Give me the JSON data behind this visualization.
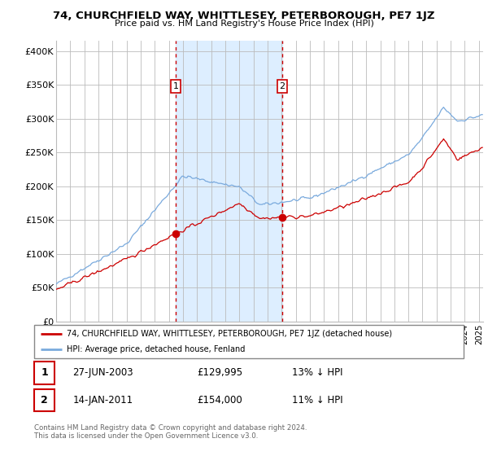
{
  "title": "74, CHURCHFIELD WAY, WHITTLESEY, PETERBOROUGH, PE7 1JZ",
  "subtitle": "Price paid vs. HM Land Registry's House Price Index (HPI)",
  "ylabel_ticks": [
    "£0",
    "£50K",
    "£100K",
    "£150K",
    "£200K",
    "£250K",
    "£300K",
    "£350K",
    "£400K"
  ],
  "ytick_values": [
    0,
    50000,
    100000,
    150000,
    200000,
    250000,
    300000,
    350000,
    400000
  ],
  "ylim": [
    0,
    415000
  ],
  "xlim_start": 1995.0,
  "xlim_end": 2025.3,
  "sale1_date": 2003.486,
  "sale1_price": 129995,
  "sale1_label": "1",
  "sale2_date": 2011.04,
  "sale2_price": 154000,
  "sale2_label": "2",
  "legend_line1": "74, CHURCHFIELD WAY, WHITTLESEY, PETERBOROUGH, PE7 1JZ (detached house)",
  "legend_line2": "HPI: Average price, detached house, Fenland",
  "table_row1": [
    "1",
    "27-JUN-2003",
    "£129,995",
    "13% ↓ HPI"
  ],
  "table_row2": [
    "2",
    "14-JAN-2011",
    "£154,000",
    "11% ↓ HPI"
  ],
  "footnote1": "Contains HM Land Registry data © Crown copyright and database right 2024.",
  "footnote2": "This data is licensed under the Open Government Licence v3.0.",
  "color_red": "#cc0000",
  "color_blue": "#7aaadd",
  "color_shading": "#ddeeff",
  "background_color": "#ffffff",
  "grid_color": "#bbbbbb"
}
